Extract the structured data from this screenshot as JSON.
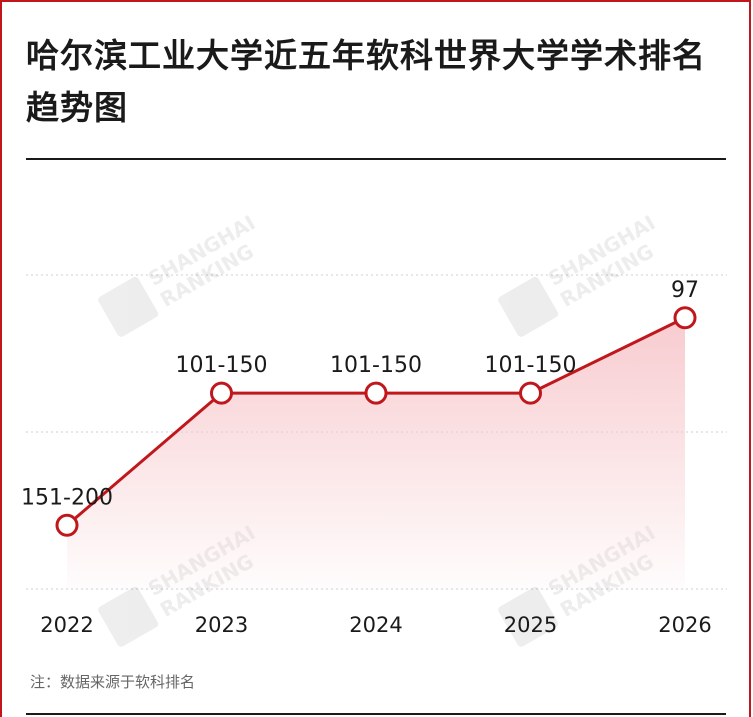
{
  "title": "哈尔滨工业大学近五年软科世界大学学术排名趋势图",
  "note": "注：数据来源于软科排名",
  "watermark": {
    "line1": "SHANGHAI",
    "line2": "RANKING",
    "logo_text": "软科"
  },
  "colors": {
    "accent": "#c0171d",
    "fill": "#f7c9cd",
    "grid": "#cfcfcf"
  },
  "chart_data": {
    "type": "line",
    "x": [
      "2022",
      "2023",
      "2024",
      "2025",
      "2026"
    ],
    "rank_labels": [
      "151-200",
      "101-150",
      "101-150",
      "101-150",
      "97"
    ],
    "values": [
      175.5,
      125.5,
      125.5,
      125.5,
      97
    ],
    "ylim": [
      60,
      200
    ],
    "y_reversed": true,
    "grid": true,
    "xlabel": "",
    "ylabel": ""
  }
}
